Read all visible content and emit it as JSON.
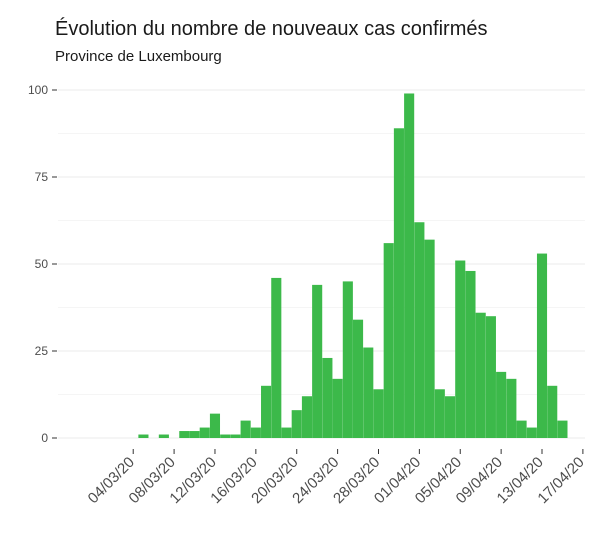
{
  "chart_data": {
    "type": "bar",
    "title": "Évolution du nombre de nouveaux cas confirmés",
    "subtitle": "Province de Luxembourg",
    "xlabel": "",
    "ylabel": "",
    "ylim": [
      0,
      100
    ],
    "yticks": [
      0,
      25,
      50,
      75,
      100
    ],
    "grid": true,
    "bar_color": "#3cb94a",
    "x_start": "01/03/20",
    "xticks": [
      "04/03/20",
      "08/03/20",
      "12/03/20",
      "16/03/20",
      "20/03/20",
      "24/03/20",
      "28/03/20",
      "01/04/20",
      "05/04/20",
      "09/04/20",
      "13/04/20",
      "17/04/20"
    ],
    "xtick_index": [
      3,
      7,
      11,
      15,
      19,
      23,
      27,
      31,
      35,
      39,
      43,
      47
    ],
    "categories": [
      "01/03/20",
      "02/03/20",
      "03/03/20",
      "04/03/20",
      "05/03/20",
      "06/03/20",
      "07/03/20",
      "08/03/20",
      "09/03/20",
      "10/03/20",
      "11/03/20",
      "12/03/20",
      "13/03/20",
      "14/03/20",
      "15/03/20",
      "16/03/20",
      "17/03/20",
      "18/03/20",
      "19/03/20",
      "20/03/20",
      "21/03/20",
      "22/03/20",
      "23/03/20",
      "24/03/20",
      "25/03/20",
      "26/03/20",
      "27/03/20",
      "28/03/20",
      "29/03/20",
      "30/03/20",
      "31/03/20",
      "01/04/20",
      "02/04/20",
      "03/04/20",
      "04/04/20",
      "05/04/20",
      "06/04/20",
      "07/04/20",
      "08/04/20",
      "09/04/20",
      "10/04/20",
      "11/04/20",
      "12/04/20",
      "13/04/20",
      "14/04/20",
      "15/04/20",
      "16/04/20"
    ],
    "values": [
      0,
      0,
      0,
      0,
      1,
      0,
      1,
      0,
      2,
      2,
      3,
      7,
      1,
      1,
      5,
      3,
      15,
      46,
      3,
      8,
      12,
      44,
      23,
      17,
      45,
      34,
      26,
      14,
      56,
      89,
      99,
      62,
      57,
      14,
      12,
      51,
      48,
      36,
      35,
      19,
      17,
      5,
      3,
      53,
      15,
      5,
      0
    ]
  }
}
